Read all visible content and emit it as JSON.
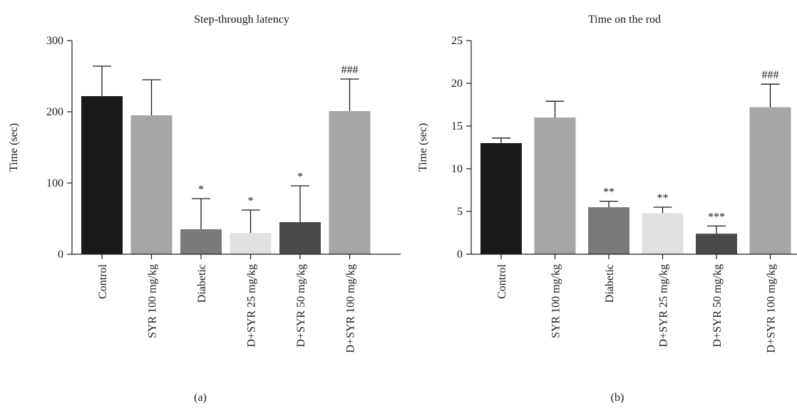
{
  "chart_data": [
    {
      "type": "bar",
      "title": "Step-through latency",
      "ylabel": "Time (sec)",
      "xlabel": "",
      "panel_label": "(a)",
      "ylim": [
        0,
        300
      ],
      "yticks": [
        "0",
        "100",
        "200",
        "300"
      ],
      "categories": [
        "Control",
        "SYR 100 mg/kg",
        "Diabetic",
        "D+SYR 25 mg/kg",
        "D+SYR 50 mg/kg",
        "D+SYR 100 mg/kg"
      ],
      "values": [
        222,
        195,
        35,
        30,
        45,
        201
      ],
      "error": [
        42,
        50,
        43,
        32,
        51,
        45
      ],
      "annotations": [
        "",
        "",
        "*",
        "*",
        "*",
        "###"
      ],
      "colors": [
        "#1a1a1a",
        "#a6a6a6",
        "#7a7a7a",
        "#e1e1e1",
        "#4a4a4a",
        "#a6a6a6"
      ],
      "grid": false
    },
    {
      "type": "bar",
      "title": "Time on the rod",
      "ylabel": "Time (sec)",
      "xlabel": "",
      "panel_label": "(b)",
      "ylim": [
        0,
        25
      ],
      "yticks": [
        "0",
        "5",
        "10",
        "15",
        "20",
        "25"
      ],
      "categories": [
        "Control",
        "SYR 100 mg/kg",
        "Diabetic",
        "D+SYR 25 mg/kg",
        "D+SYR 50 mg/kg",
        "D+SYR 100 mg/kg"
      ],
      "values": [
        13.0,
        16.0,
        5.5,
        4.8,
        2.4,
        17.2
      ],
      "error": [
        0.6,
        1.9,
        0.7,
        0.7,
        0.9,
        2.7
      ],
      "annotations": [
        "",
        "",
        "**",
        "**",
        "***",
        "###"
      ],
      "colors": [
        "#1a1a1a",
        "#a6a6a6",
        "#7a7a7a",
        "#e1e1e1",
        "#4a4a4a",
        "#a6a6a6"
      ],
      "grid": false
    }
  ]
}
